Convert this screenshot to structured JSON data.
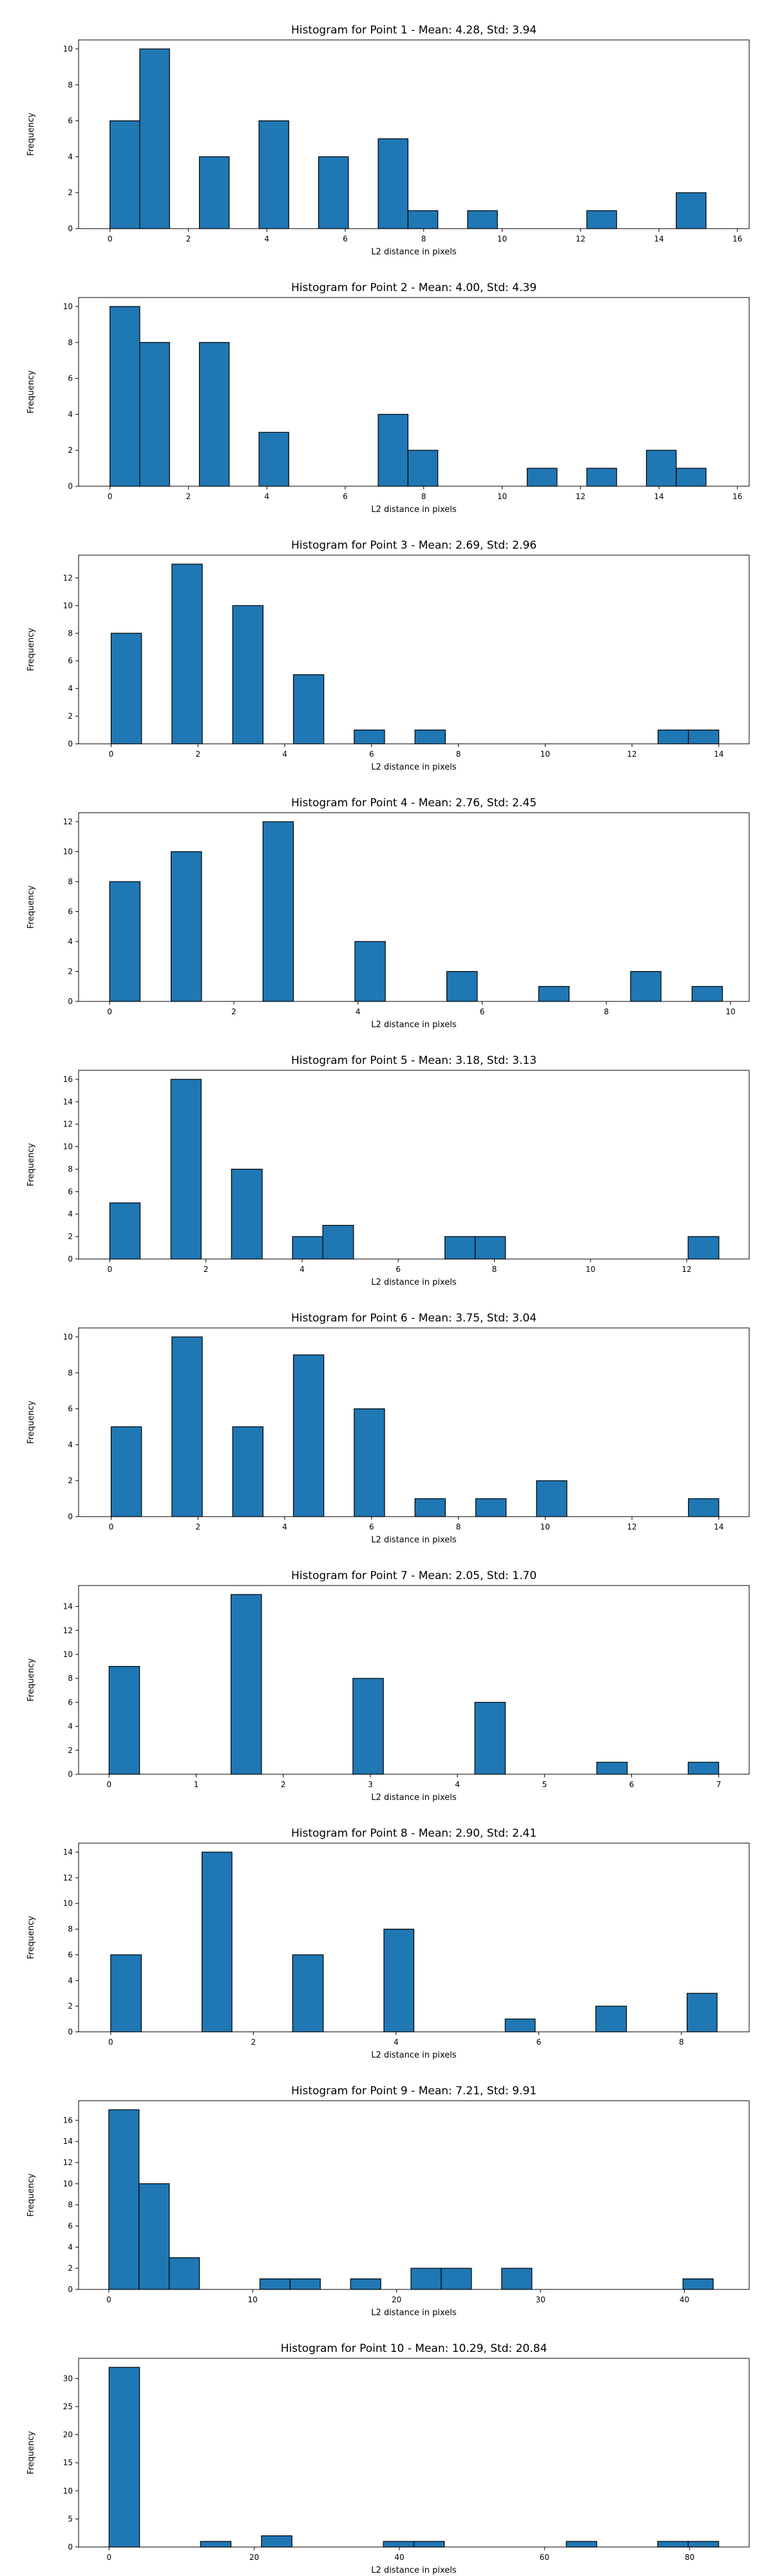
{
  "chart_data": [
    {
      "type": "bar",
      "title": "Histogram for Point 1 - Mean: 4.28, Std: 3.94",
      "xlabel": "L2 distance in pixels",
      "ylabel": "Frequency",
      "xlim": [
        -0.8,
        16.3
      ],
      "ylim": [
        0,
        10.5
      ],
      "xticks": [
        0,
        2,
        4,
        6,
        8,
        10,
        12,
        14,
        16
      ],
      "yticks": [
        0,
        2,
        4,
        6,
        8,
        10
      ],
      "color": "#1f77b4",
      "edgecolor": "#000000",
      "bins": [
        {
          "x0": 0.0,
          "x1": 0.76,
          "count": 6
        },
        {
          "x0": 0.76,
          "x1": 1.52,
          "count": 10
        },
        {
          "x0": 2.28,
          "x1": 3.04,
          "count": 4
        },
        {
          "x0": 3.8,
          "x1": 4.56,
          "count": 6
        },
        {
          "x0": 5.32,
          "x1": 6.08,
          "count": 4
        },
        {
          "x0": 6.84,
          "x1": 7.6,
          "count": 5
        },
        {
          "x0": 7.6,
          "x1": 8.36,
          "count": 1
        },
        {
          "x0": 9.12,
          "x1": 9.88,
          "count": 1
        },
        {
          "x0": 12.16,
          "x1": 12.92,
          "count": 1
        },
        {
          "x0": 14.44,
          "x1": 15.2,
          "count": 2
        }
      ]
    },
    {
      "type": "bar",
      "title": "Histogram for Point 2 - Mean: 4.00, Std: 4.39",
      "xlabel": "L2 distance in pixels",
      "ylabel": "Frequency",
      "xlim": [
        -0.8,
        16.3
      ],
      "ylim": [
        0,
        10.5
      ],
      "xticks": [
        0,
        2,
        4,
        6,
        8,
        10,
        12,
        14,
        16
      ],
      "yticks": [
        0,
        2,
        4,
        6,
        8,
        10
      ],
      "color": "#1f77b4",
      "edgecolor": "#000000",
      "bins": [
        {
          "x0": 0.0,
          "x1": 0.76,
          "count": 10
        },
        {
          "x0": 0.76,
          "x1": 1.52,
          "count": 8
        },
        {
          "x0": 2.28,
          "x1": 3.04,
          "count": 8
        },
        {
          "x0": 3.8,
          "x1": 4.56,
          "count": 3
        },
        {
          "x0": 6.84,
          "x1": 7.6,
          "count": 4
        },
        {
          "x0": 7.6,
          "x1": 8.36,
          "count": 2
        },
        {
          "x0": 10.64,
          "x1": 11.4,
          "count": 1
        },
        {
          "x0": 12.16,
          "x1": 12.92,
          "count": 1
        },
        {
          "x0": 13.68,
          "x1": 14.44,
          "count": 2
        },
        {
          "x0": 14.44,
          "x1": 15.2,
          "count": 1
        }
      ]
    },
    {
      "type": "bar",
      "title": "Histogram for Point 3 - Mean: 2.69, Std: 2.96",
      "xlabel": "L2 distance in pixels",
      "ylabel": "Frequency",
      "xlim": [
        -0.75,
        14.7
      ],
      "ylim": [
        0,
        13.65
      ],
      "xticks": [
        0,
        2,
        4,
        6,
        8,
        10,
        12,
        14
      ],
      "yticks": [
        0,
        2,
        4,
        6,
        8,
        10,
        12
      ],
      "color": "#1f77b4",
      "edgecolor": "#000000",
      "bins": [
        {
          "x0": 0.0,
          "x1": 0.7,
          "count": 8
        },
        {
          "x0": 1.4,
          "x1": 2.1,
          "count": 13
        },
        {
          "x0": 2.8,
          "x1": 3.5,
          "count": 10
        },
        {
          "x0": 4.2,
          "x1": 4.9,
          "count": 5
        },
        {
          "x0": 5.6,
          "x1": 6.3,
          "count": 1
        },
        {
          "x0": 7.0,
          "x1": 7.7,
          "count": 1
        },
        {
          "x0": 12.6,
          "x1": 13.3,
          "count": 1
        },
        {
          "x0": 13.3,
          "x1": 14.0,
          "count": 1
        }
      ]
    },
    {
      "type": "bar",
      "title": "Histogram for Point 4 - Mean: 2.76, Std: 2.45",
      "xlabel": "L2 distance in pixels",
      "ylabel": "Frequency",
      "xlim": [
        -0.5,
        10.3
      ],
      "ylim": [
        0,
        12.6
      ],
      "xticks": [
        0,
        2,
        4,
        6,
        8,
        10
      ],
      "yticks": [
        0,
        2,
        4,
        6,
        8,
        10,
        12
      ],
      "color": "#1f77b4",
      "edgecolor": "#000000",
      "bins": [
        {
          "x0": 0.0,
          "x1": 0.49,
          "count": 8
        },
        {
          "x0": 0.99,
          "x1": 1.48,
          "count": 10
        },
        {
          "x0": 2.47,
          "x1": 2.96,
          "count": 12
        },
        {
          "x0": 3.95,
          "x1": 4.44,
          "count": 4
        },
        {
          "x0": 5.43,
          "x1": 5.92,
          "count": 2
        },
        {
          "x0": 6.91,
          "x1": 7.4,
          "count": 1
        },
        {
          "x0": 8.39,
          "x1": 8.88,
          "count": 2
        },
        {
          "x0": 9.38,
          "x1": 9.87,
          "count": 1
        }
      ]
    },
    {
      "type": "bar",
      "title": "Histogram for Point 5 - Mean: 3.18, Std: 3.13",
      "xlabel": "L2 distance in pixels",
      "ylabel": "Frequency",
      "xlim": [
        -0.65,
        13.3
      ],
      "ylim": [
        0,
        16.8
      ],
      "xticks": [
        0,
        2,
        4,
        6,
        8,
        10,
        12
      ],
      "yticks": [
        0,
        2,
        4,
        6,
        8,
        10,
        12,
        14,
        16
      ],
      "color": "#1f77b4",
      "edgecolor": "#000000",
      "bins": [
        {
          "x0": 0.0,
          "x1": 0.63,
          "count": 5
        },
        {
          "x0": 1.27,
          "x1": 1.9,
          "count": 16
        },
        {
          "x0": 2.53,
          "x1": 3.17,
          "count": 8
        },
        {
          "x0": 3.8,
          "x1": 4.43,
          "count": 2
        },
        {
          "x0": 4.43,
          "x1": 5.07,
          "count": 3
        },
        {
          "x0": 6.97,
          "x1": 7.6,
          "count": 2
        },
        {
          "x0": 7.6,
          "x1": 8.23,
          "count": 2
        },
        {
          "x0": 12.03,
          "x1": 12.67,
          "count": 2
        }
      ]
    },
    {
      "type": "bar",
      "title": "Histogram for Point 6 - Mean: 3.75, Std: 3.04",
      "xlabel": "L2 distance in pixels",
      "ylabel": "Frequency",
      "xlim": [
        -0.75,
        14.7
      ],
      "ylim": [
        0,
        10.5
      ],
      "xticks": [
        0,
        2,
        4,
        6,
        8,
        10,
        12,
        14
      ],
      "yticks": [
        0,
        2,
        4,
        6,
        8,
        10
      ],
      "color": "#1f77b4",
      "edgecolor": "#000000",
      "bins": [
        {
          "x0": 0.0,
          "x1": 0.7,
          "count": 5
        },
        {
          "x0": 1.4,
          "x1": 2.1,
          "count": 10
        },
        {
          "x0": 2.8,
          "x1": 3.5,
          "count": 5
        },
        {
          "x0": 4.2,
          "x1": 4.9,
          "count": 9
        },
        {
          "x0": 5.6,
          "x1": 6.3,
          "count": 6
        },
        {
          "x0": 7.0,
          "x1": 7.7,
          "count": 1
        },
        {
          "x0": 8.4,
          "x1": 9.1,
          "count": 1
        },
        {
          "x0": 9.8,
          "x1": 10.5,
          "count": 2
        },
        {
          "x0": 13.3,
          "x1": 14.0,
          "count": 1
        }
      ]
    },
    {
      "type": "bar",
      "title": "Histogram for Point 7 - Mean: 2.05, Std: 1.70",
      "xlabel": "L2 distance in pixels",
      "ylabel": "Frequency",
      "xlim": [
        -0.35,
        7.35
      ],
      "ylim": [
        0,
        15.75
      ],
      "xticks": [
        0,
        1,
        2,
        3,
        4,
        5,
        6,
        7
      ],
      "yticks": [
        0,
        2,
        4,
        6,
        8,
        10,
        12,
        14
      ],
      "color": "#1f77b4",
      "edgecolor": "#000000",
      "bins": [
        {
          "x0": 0.0,
          "x1": 0.35,
          "count": 9
        },
        {
          "x0": 1.4,
          "x1": 1.75,
          "count": 15
        },
        {
          "x0": 2.8,
          "x1": 3.15,
          "count": 8
        },
        {
          "x0": 4.2,
          "x1": 4.55,
          "count": 6
        },
        {
          "x0": 5.6,
          "x1": 5.95,
          "count": 1
        },
        {
          "x0": 6.65,
          "x1": 7.0,
          "count": 1
        }
      ]
    },
    {
      "type": "bar",
      "title": "Histogram for Point 8 - Mean: 2.90, Std: 2.41",
      "xlabel": "L2 distance in pixels",
      "ylabel": "Frequency",
      "xlim": [
        -0.45,
        8.95
      ],
      "ylim": [
        0,
        14.7
      ],
      "xticks": [
        0,
        2,
        4,
        6,
        8
      ],
      "yticks": [
        0,
        2,
        4,
        6,
        8,
        10,
        12,
        14
      ],
      "color": "#1f77b4",
      "edgecolor": "#000000",
      "bins": [
        {
          "x0": 0.0,
          "x1": 0.43,
          "count": 6
        },
        {
          "x0": 1.28,
          "x1": 1.7,
          "count": 14
        },
        {
          "x0": 2.55,
          "x1": 2.98,
          "count": 6
        },
        {
          "x0": 3.83,
          "x1": 4.25,
          "count": 8
        },
        {
          "x0": 5.53,
          "x1": 5.95,
          "count": 1
        },
        {
          "x0": 6.8,
          "x1": 7.23,
          "count": 2
        },
        {
          "x0": 8.08,
          "x1": 8.5,
          "count": 3
        }
      ]
    },
    {
      "type": "bar",
      "title": "Histogram for Point 9 - Mean: 7.21, Std: 9.91",
      "xlabel": "L2 distance in pixels",
      "ylabel": "Frequency",
      "xlim": [
        -2.1,
        44.5
      ],
      "ylim": [
        0,
        17.85
      ],
      "xticks": [
        0,
        10,
        20,
        30,
        40
      ],
      "yticks": [
        0,
        2,
        4,
        6,
        8,
        10,
        12,
        14,
        16
      ],
      "color": "#1f77b4",
      "edgecolor": "#000000",
      "bins": [
        {
          "x0": 0.0,
          "x1": 2.1,
          "count": 17
        },
        {
          "x0": 2.1,
          "x1": 4.2,
          "count": 10
        },
        {
          "x0": 4.2,
          "x1": 6.3,
          "count": 3
        },
        {
          "x0": 10.5,
          "x1": 12.6,
          "count": 1
        },
        {
          "x0": 12.6,
          "x1": 14.7,
          "count": 1
        },
        {
          "x0": 16.8,
          "x1": 18.9,
          "count": 1
        },
        {
          "x0": 21.0,
          "x1": 23.1,
          "count": 2
        },
        {
          "x0": 23.1,
          "x1": 25.2,
          "count": 2
        },
        {
          "x0": 27.3,
          "x1": 29.4,
          "count": 2
        },
        {
          "x0": 39.9,
          "x1": 42.0,
          "count": 1
        }
      ]
    },
    {
      "type": "bar",
      "title": "Histogram for Point 10 - Mean: 10.29, Std: 20.84",
      "xlabel": "L2 distance in pixels",
      "ylabel": "Frequency",
      "xlim": [
        -4.2,
        88.2
      ],
      "ylim": [
        0,
        33.6
      ],
      "xticks": [
        0,
        20,
        40,
        60,
        80
      ],
      "yticks": [
        0,
        5,
        10,
        15,
        20,
        25,
        30
      ],
      "color": "#1f77b4",
      "edgecolor": "#000000",
      "bins": [
        {
          "x0": 0.0,
          "x1": 4.2,
          "count": 32
        },
        {
          "x0": 12.6,
          "x1": 16.8,
          "count": 1
        },
        {
          "x0": 21.0,
          "x1": 25.2,
          "count": 2
        },
        {
          "x0": 37.8,
          "x1": 42.0,
          "count": 1
        },
        {
          "x0": 42.0,
          "x1": 46.2,
          "count": 1
        },
        {
          "x0": 63.0,
          "x1": 67.2,
          "count": 1
        },
        {
          "x0": 75.6,
          "x1": 79.8,
          "count": 1
        },
        {
          "x0": 79.8,
          "x1": 84.0,
          "count": 1
        }
      ]
    }
  ]
}
